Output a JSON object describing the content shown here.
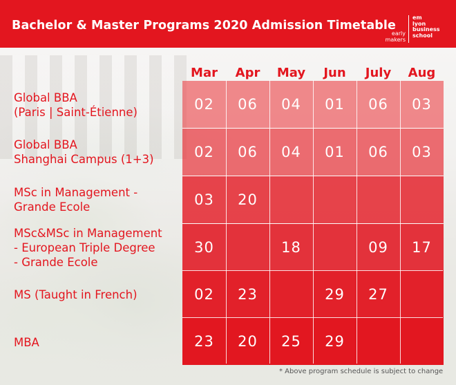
{
  "header": {
    "title": "Bachelor & Master Programs 2020 Admission Timetable",
    "tagline": [
      "early",
      "makers"
    ],
    "logo": [
      "em",
      "lyon",
      "business",
      "school"
    ],
    "accent_color": "#e3161f"
  },
  "months": [
    "Mar",
    "Apr",
    "May",
    "Jun",
    "July",
    "Aug"
  ],
  "programs": [
    {
      "label_lines": [
        "Global BBA",
        "(Paris | Saint-Étienne)"
      ],
      "dates": [
        "02",
        "06",
        "04",
        "01",
        "06",
        "03"
      ]
    },
    {
      "label_lines": [
        "Global BBA",
        "Shanghai Campus (1+3)"
      ],
      "dates": [
        "02",
        "06",
        "04",
        "01",
        "06",
        "03"
      ]
    },
    {
      "label_lines": [
        "MSc in Management -",
        "Grande Ecole"
      ],
      "dates": [
        "03",
        "20",
        "",
        "",
        "",
        ""
      ]
    },
    {
      "label_lines": [
        "MSc&MSc in Management",
        "- European Triple Degree",
        "- Grande Ecole"
      ],
      "dates": [
        "30",
        "",
        "18",
        "",
        "09",
        "17"
      ]
    },
    {
      "label_lines": [
        "MS (Taught in French)"
      ],
      "dates": [
        "02",
        "23",
        "",
        "29",
        "27",
        ""
      ]
    },
    {
      "label_lines": [
        "MBA"
      ],
      "dates": [
        "23",
        "20",
        "25",
        "29",
        "",
        ""
      ]
    }
  ],
  "footnote": "* Above program schedule is subject to change"
}
